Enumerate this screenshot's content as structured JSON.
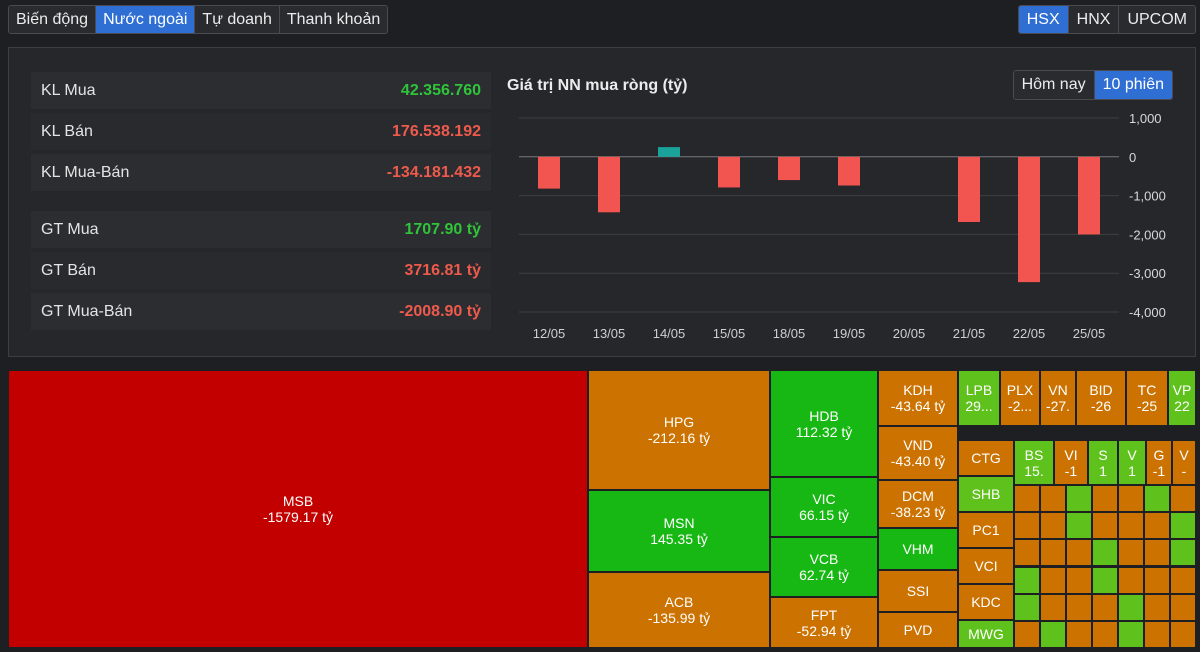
{
  "tabs": [
    "Biến động",
    "Nước ngoài",
    "Tự doanh",
    "Thanh khoản"
  ],
  "active_tab": 1,
  "exchanges": [
    "HSX",
    "HNX",
    "UPCOM"
  ],
  "active_exchange": 0,
  "stats": {
    "kl_mua": {
      "label": "KL Mua",
      "value": "42.356.760"
    },
    "kl_ban": {
      "label": "KL Bán",
      "value": "176.538.192"
    },
    "kl_mua_ban": {
      "label": "KL Mua-Bán",
      "value": "-134.181.432"
    },
    "gt_mua": {
      "label": "GT Mua",
      "value": "1707.90 tỷ"
    },
    "gt_ban": {
      "label": "GT Bán",
      "value": "3716.81 tỷ"
    },
    "gt_mua_ban": {
      "label": "GT Mua-Bán",
      "value": "-2008.90 tỷ"
    }
  },
  "chart": {
    "title": "Giá trị NN mua ròng (tỷ)",
    "range_tabs": [
      "Hôm nay",
      "10 phiên"
    ],
    "active_range": 1
  },
  "chart_data": {
    "type": "bar",
    "categories": [
      "12/05",
      "13/05",
      "14/05",
      "15/05",
      "18/05",
      "19/05",
      "20/05",
      "21/05",
      "22/05",
      "25/05"
    ],
    "values": [
      -820,
      -1430,
      250,
      -790,
      -600,
      -740,
      0,
      -1680,
      -3230,
      -2000
    ],
    "ylim": [
      -4000,
      1000
    ],
    "yticks": [
      1000,
      0,
      -1000,
      -2000,
      -3000,
      -4000
    ],
    "ytick_labels": [
      "1,000",
      "0",
      "-1,000",
      "-2,000",
      "-3,000",
      "-4,000"
    ],
    "grid": true,
    "colors": {
      "positive": "#1aa39a",
      "negative": "#f25450"
    }
  },
  "treemap": [
    {
      "sym": "MSB",
      "val": "-1579.17 tỷ",
      "color": "red"
    },
    {
      "sym": "HPG",
      "val": "-212.16 tỷ",
      "color": "orange"
    },
    {
      "sym": "MSN",
      "val": "145.35 tỷ",
      "color": "green"
    },
    {
      "sym": "ACB",
      "val": "-135.99 tỷ",
      "color": "orange"
    },
    {
      "sym": "HDB",
      "val": "112.32 tỷ",
      "color": "green"
    },
    {
      "sym": "VIC",
      "val": "66.15 tỷ",
      "color": "green"
    },
    {
      "sym": "VCB",
      "val": "62.74 tỷ",
      "color": "green"
    },
    {
      "sym": "FPT",
      "val": "-52.94 tỷ",
      "color": "orange"
    },
    {
      "sym": "KDH",
      "val": "-43.64 tỷ",
      "color": "orange"
    },
    {
      "sym": "VND",
      "val": "-43.40 tỷ",
      "color": "orange"
    },
    {
      "sym": "DCM",
      "val": "-38.23 tỷ",
      "color": "orange"
    },
    {
      "sym": "VHM",
      "val": "",
      "color": "green"
    },
    {
      "sym": "SSI",
      "val": "",
      "color": "orange"
    },
    {
      "sym": "PVD",
      "val": "",
      "color": "orange"
    },
    {
      "sym": "LPB",
      "val": "29...",
      "color": "lgreen"
    },
    {
      "sym": "PLX",
      "val": "-2...",
      "color": "orange"
    },
    {
      "sym": "VN",
      "val": "-27.",
      "color": "orange"
    },
    {
      "sym": "BID",
      "val": "-26",
      "color": "orange"
    },
    {
      "sym": "TC",
      "val": "-25",
      "color": "orange"
    },
    {
      "sym": "VP",
      "val": "22",
      "color": "lgreen"
    },
    {
      "sym": "CTG",
      "val": "",
      "color": "orange"
    },
    {
      "sym": "BS",
      "val": "15.",
      "color": "lgreen"
    },
    {
      "sym": "VI",
      "val": "-1",
      "color": "orange"
    },
    {
      "sym": "S",
      "val": "1",
      "color": "lgreen"
    },
    {
      "sym": "V",
      "val": "1",
      "color": "lgreen"
    },
    {
      "sym": "G",
      "val": "-1",
      "color": "orange"
    },
    {
      "sym": "V",
      "val": "-",
      "color": "orange"
    },
    {
      "sym": "SHB",
      "val": "",
      "color": "lgreen"
    },
    {
      "sym": "PC1",
      "val": "",
      "color": "orange"
    },
    {
      "sym": "VCI",
      "val": "",
      "color": "orange"
    },
    {
      "sym": "KDC",
      "val": "",
      "color": "orange"
    },
    {
      "sym": "MWG",
      "val": "",
      "color": "lgreen"
    }
  ]
}
